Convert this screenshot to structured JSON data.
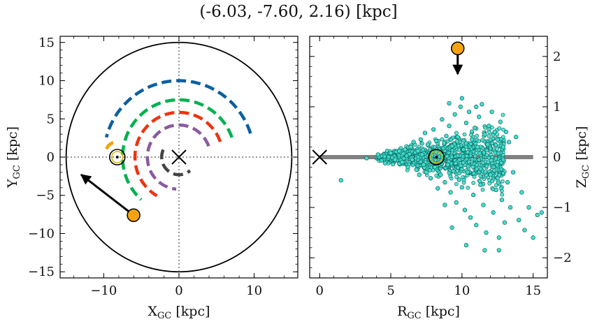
{
  "title": "(-6.03, -7.60, 2.16) [kpc]",
  "chart_data": [
    {
      "type": "line",
      "panel": "left",
      "xlabel": "X",
      "xlabel_sub": "GC",
      "xlabel_unit": " [kpc]",
      "ylabel": "Y",
      "ylabel_sub": "GC",
      "ylabel_unit": " [kpc]",
      "xlim": [
        -15.8,
        15.8
      ],
      "ylim": [
        -15.8,
        15.8
      ],
      "xticks": [
        -10,
        0,
        10
      ],
      "xtick_labels": [
        "−10",
        "0",
        "10"
      ],
      "yticks": [
        -15,
        -10,
        -5,
        0,
        5,
        10,
        15
      ],
      "ytick_labels": [
        "−15",
        "−10",
        "−5",
        "0",
        "5",
        "10",
        "15"
      ],
      "grid": false,
      "boundary_circle_radius": 15,
      "center_marker": [
        0,
        0
      ],
      "sun_position": [
        -8.2,
        0
      ],
      "object_position": [
        -6.03,
        -7.6
      ],
      "velocity_arrow_end": [
        -13.0,
        -2.3
      ],
      "series": [
        {
          "color": "#0a5fa0",
          "radius": 10.0,
          "start_deg": 18,
          "end_deg": 165
        },
        {
          "color": "#00b14f",
          "radius": 7.5,
          "start_deg": 20,
          "end_deg": 228
        },
        {
          "color": "#ee3311",
          "radius": 5.85,
          "start_deg": 20,
          "end_deg": 240
        },
        {
          "color": "#8a5a9e",
          "radius": 4.2,
          "start_deg": 20,
          "end_deg": 265
        },
        {
          "color": "#444444",
          "radius": 2.3,
          "start_deg": 155,
          "end_deg": 310
        },
        {
          "color": "#f5a000",
          "radius": 1.6,
          "start_deg": 110,
          "end_deg": 160,
          "center": [
            -8.2,
            0.4
          ]
        }
      ]
    },
    {
      "type": "scatter",
      "panel": "right",
      "xlabel": "R",
      "xlabel_sub": "GC",
      "xlabel_unit": " [kpc]",
      "ylabel": "Z",
      "ylabel_sub": "GC",
      "ylabel_unit": " [kpc]",
      "xlim": [
        -0.7,
        16.0
      ],
      "ylim": [
        -2.4,
        2.4
      ],
      "xticks": [
        0,
        5,
        10,
        15
      ],
      "xtick_labels": [
        "0",
        "5",
        "10",
        "15"
      ],
      "yticks": [
        -2,
        -1,
        0,
        1,
        2
      ],
      "ytick_labels": [
        "−2",
        "−1",
        "0",
        "1",
        "2"
      ],
      "grid": false,
      "point_color": "#40e0d0",
      "disk_line": {
        "x": [
          0,
          15
        ],
        "y": 0,
        "color": "#808080"
      },
      "center_marker": [
        0,
        0
      ],
      "sun_position": [
        8.2,
        0
      ],
      "object_position": [
        9.7,
        2.16
      ],
      "velocity_arrow_end": [
        9.7,
        1.65
      ],
      "points": [
        [
          1.5,
          -0.46
        ],
        [
          3.3,
          -0.02
        ],
        [
          4.1,
          0.05
        ],
        [
          4.6,
          -0.12
        ],
        [
          5.0,
          0.08
        ],
        [
          5.3,
          -0.05
        ],
        [
          5.6,
          0.12
        ],
        [
          5.8,
          -0.1
        ],
        [
          6.0,
          0.15
        ],
        [
          6.2,
          -0.2
        ],
        [
          6.4,
          0.2
        ],
        [
          6.5,
          -0.05
        ],
        [
          6.6,
          0.3
        ],
        [
          6.8,
          -0.25
        ],
        [
          6.9,
          0.12
        ],
        [
          7.0,
          -0.35
        ],
        [
          7.1,
          0.35
        ],
        [
          7.2,
          0.05
        ],
        [
          7.3,
          -0.15
        ],
        [
          7.4,
          0.48
        ],
        [
          7.5,
          -0.3
        ],
        [
          7.6,
          0.25
        ],
        [
          7.7,
          -0.05
        ],
        [
          7.8,
          -0.42
        ],
        [
          7.9,
          0.1
        ],
        [
          8.0,
          0.55
        ],
        [
          8.1,
          -0.2
        ],
        [
          8.2,
          0.32
        ],
        [
          8.3,
          -0.62
        ],
        [
          8.4,
          0.15
        ],
        [
          8.5,
          -0.35
        ],
        [
          8.6,
          0.75
        ],
        [
          8.7,
          0.05
        ],
        [
          8.8,
          -0.5
        ],
        [
          8.9,
          0.42
        ],
        [
          9.0,
          -0.15
        ],
        [
          9.1,
          0.62
        ],
        [
          9.2,
          -0.7
        ],
        [
          9.3,
          0.22
        ],
        [
          9.4,
          -0.28
        ],
        [
          9.5,
          0.85
        ],
        [
          9.6,
          -0.9
        ],
        [
          9.7,
          0.4
        ],
        [
          9.8,
          -0.45
        ],
        [
          9.9,
          1.0
        ],
        [
          10.0,
          -0.6
        ],
        [
          10.0,
          1.17
        ],
        [
          10.1,
          0.15
        ],
        [
          10.2,
          -1.05
        ],
        [
          10.3,
          0.68
        ],
        [
          10.4,
          -0.3
        ],
        [
          10.5,
          0.9
        ],
        [
          10.6,
          -1.2
        ],
        [
          10.7,
          0.35
        ],
        [
          10.8,
          -0.75
        ],
        [
          10.9,
          0.58
        ],
        [
          11.0,
          -1.35
        ],
        [
          11.1,
          0.2
        ],
        [
          11.2,
          0.8
        ],
        [
          11.3,
          -0.55
        ],
        [
          11.4,
          1.05
        ],
        [
          11.5,
          -0.95
        ],
        [
          11.6,
          0.45
        ],
        [
          11.7,
          -1.5
        ],
        [
          11.8,
          0.25
        ],
        [
          11.9,
          0.62
        ],
        [
          12.0,
          -0.35
        ],
        [
          12.1,
          0.9
        ],
        [
          12.2,
          -1.1
        ],
        [
          12.3,
          0.5
        ],
        [
          12.4,
          -0.65
        ],
        [
          12.5,
          0.35
        ],
        [
          12.6,
          -1.6
        ],
        [
          12.7,
          0.7
        ],
        [
          12.8,
          -0.85
        ],
        [
          12.9,
          0.2
        ],
        [
          13.0,
          -1.3
        ],
        [
          13.1,
          0.5
        ],
        [
          13.2,
          -0.5
        ],
        [
          13.3,
          0.3
        ],
        [
          13.4,
          -1.0
        ],
        [
          13.6,
          -0.3
        ],
        [
          13.8,
          0.4
        ],
        [
          14.0,
          -1.25
        ],
        [
          14.2,
          -0.7
        ],
        [
          14.4,
          -1.45
        ],
        [
          14.7,
          -1.0
        ],
        [
          15.0,
          -1.6
        ],
        [
          15.3,
          -1.15
        ],
        [
          15.6,
          -1.1
        ],
        [
          9.1,
          1.07
        ],
        [
          11.0,
          1.0
        ],
        [
          10.3,
          -1.75
        ],
        [
          11.6,
          -1.85
        ],
        [
          12.6,
          -1.85
        ],
        [
          9.3,
          -1.4
        ],
        [
          8.8,
          -0.95
        ]
      ]
    }
  ]
}
